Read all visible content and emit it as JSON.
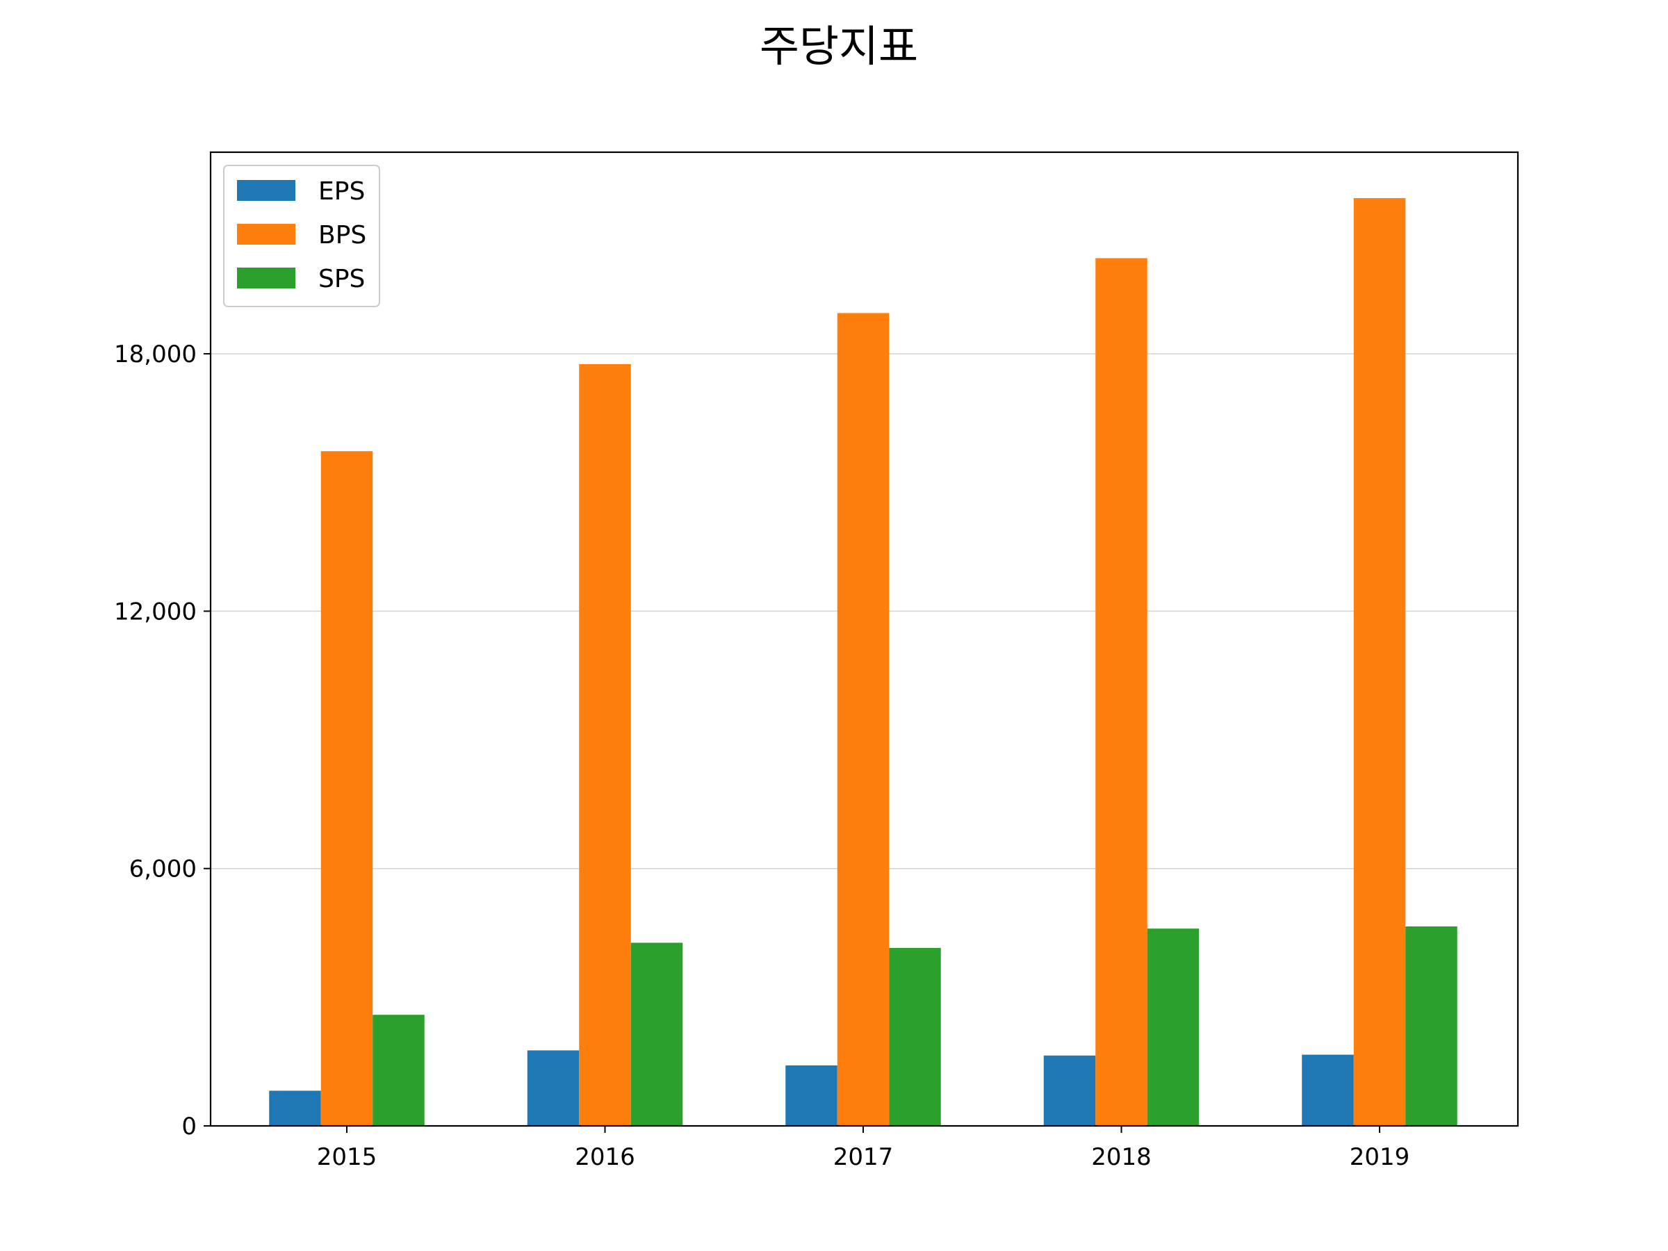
{
  "chart_data": {
    "type": "bar",
    "title": "주당지표",
    "xlabel": "",
    "ylabel": "",
    "categories": [
      "2015",
      "2016",
      "2017",
      "2018",
      "2019"
    ],
    "series": [
      {
        "name": "EPS",
        "color": "#1f77b4",
        "values": [
          820,
          1760,
          1410,
          1640,
          1660
        ]
      },
      {
        "name": "BPS",
        "color": "#ff7f0e",
        "values": [
          15730,
          17760,
          18950,
          20230,
          21630
        ]
      },
      {
        "name": "SPS",
        "color": "#2ca02c",
        "values": [
          2590,
          4270,
          4150,
          4600,
          4650
        ]
      }
    ],
    "ylim": [
      0,
      22700
    ],
    "yticks": [
      0,
      6000,
      12000,
      18000
    ],
    "ytick_labels": [
      "0",
      "6,000",
      "12,000",
      "18,000"
    ],
    "grid": "y",
    "legend_position": "top-left"
  }
}
